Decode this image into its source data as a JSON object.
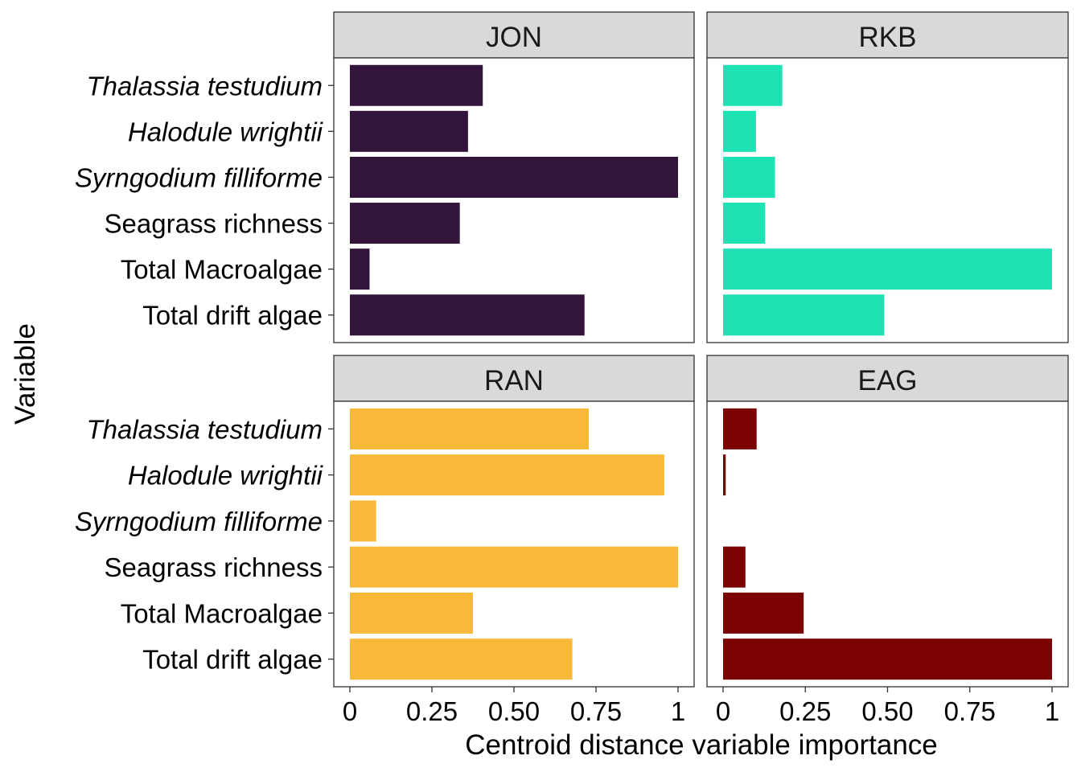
{
  "chart_data": {
    "type": "bar",
    "orientation": "horizontal",
    "xlabel": "Centroid distance variable importance",
    "ylabel": "Variable",
    "xlim": [
      0,
      1
    ],
    "x_ticks": [
      {
        "value": 0,
        "label": "0"
      },
      {
        "value": 0.25,
        "label": "0.25"
      },
      {
        "value": 0.5,
        "label": "0.50"
      },
      {
        "value": 0.75,
        "label": "0.75"
      },
      {
        "value": 1,
        "label": "1"
      }
    ],
    "categories": [
      {
        "label": "Thalassia testudium",
        "italic": true
      },
      {
        "label": "Halodule wrightii",
        "italic": true
      },
      {
        "label": "Syrngodium filliforme",
        "italic": true
      },
      {
        "label": "Seagrass richness",
        "italic": false
      },
      {
        "label": "Total Macroalgae",
        "italic": false
      },
      {
        "label": "Total drift algae",
        "italic": false
      }
    ],
    "grid": false,
    "legend": "none",
    "strip_fill": "#d9d9d9",
    "panels": [
      {
        "name": "JON",
        "color": "#33143b",
        "values": [
          0.405,
          0.36,
          1.0,
          0.335,
          0.06,
          0.715
        ]
      },
      {
        "name": "RKB",
        "color": "#1de2b4",
        "values": [
          0.18,
          0.1,
          0.158,
          0.128,
          1.0,
          0.49
        ]
      },
      {
        "name": "RAN",
        "color": "#f7b937",
        "values": [
          0.728,
          0.958,
          0.08,
          1.0,
          0.375,
          0.678
        ]
      },
      {
        "name": "EAG",
        "color": "#7b0304",
        "values": [
          0.102,
          0.008,
          0.0,
          0.068,
          0.245,
          1.0
        ]
      }
    ]
  }
}
